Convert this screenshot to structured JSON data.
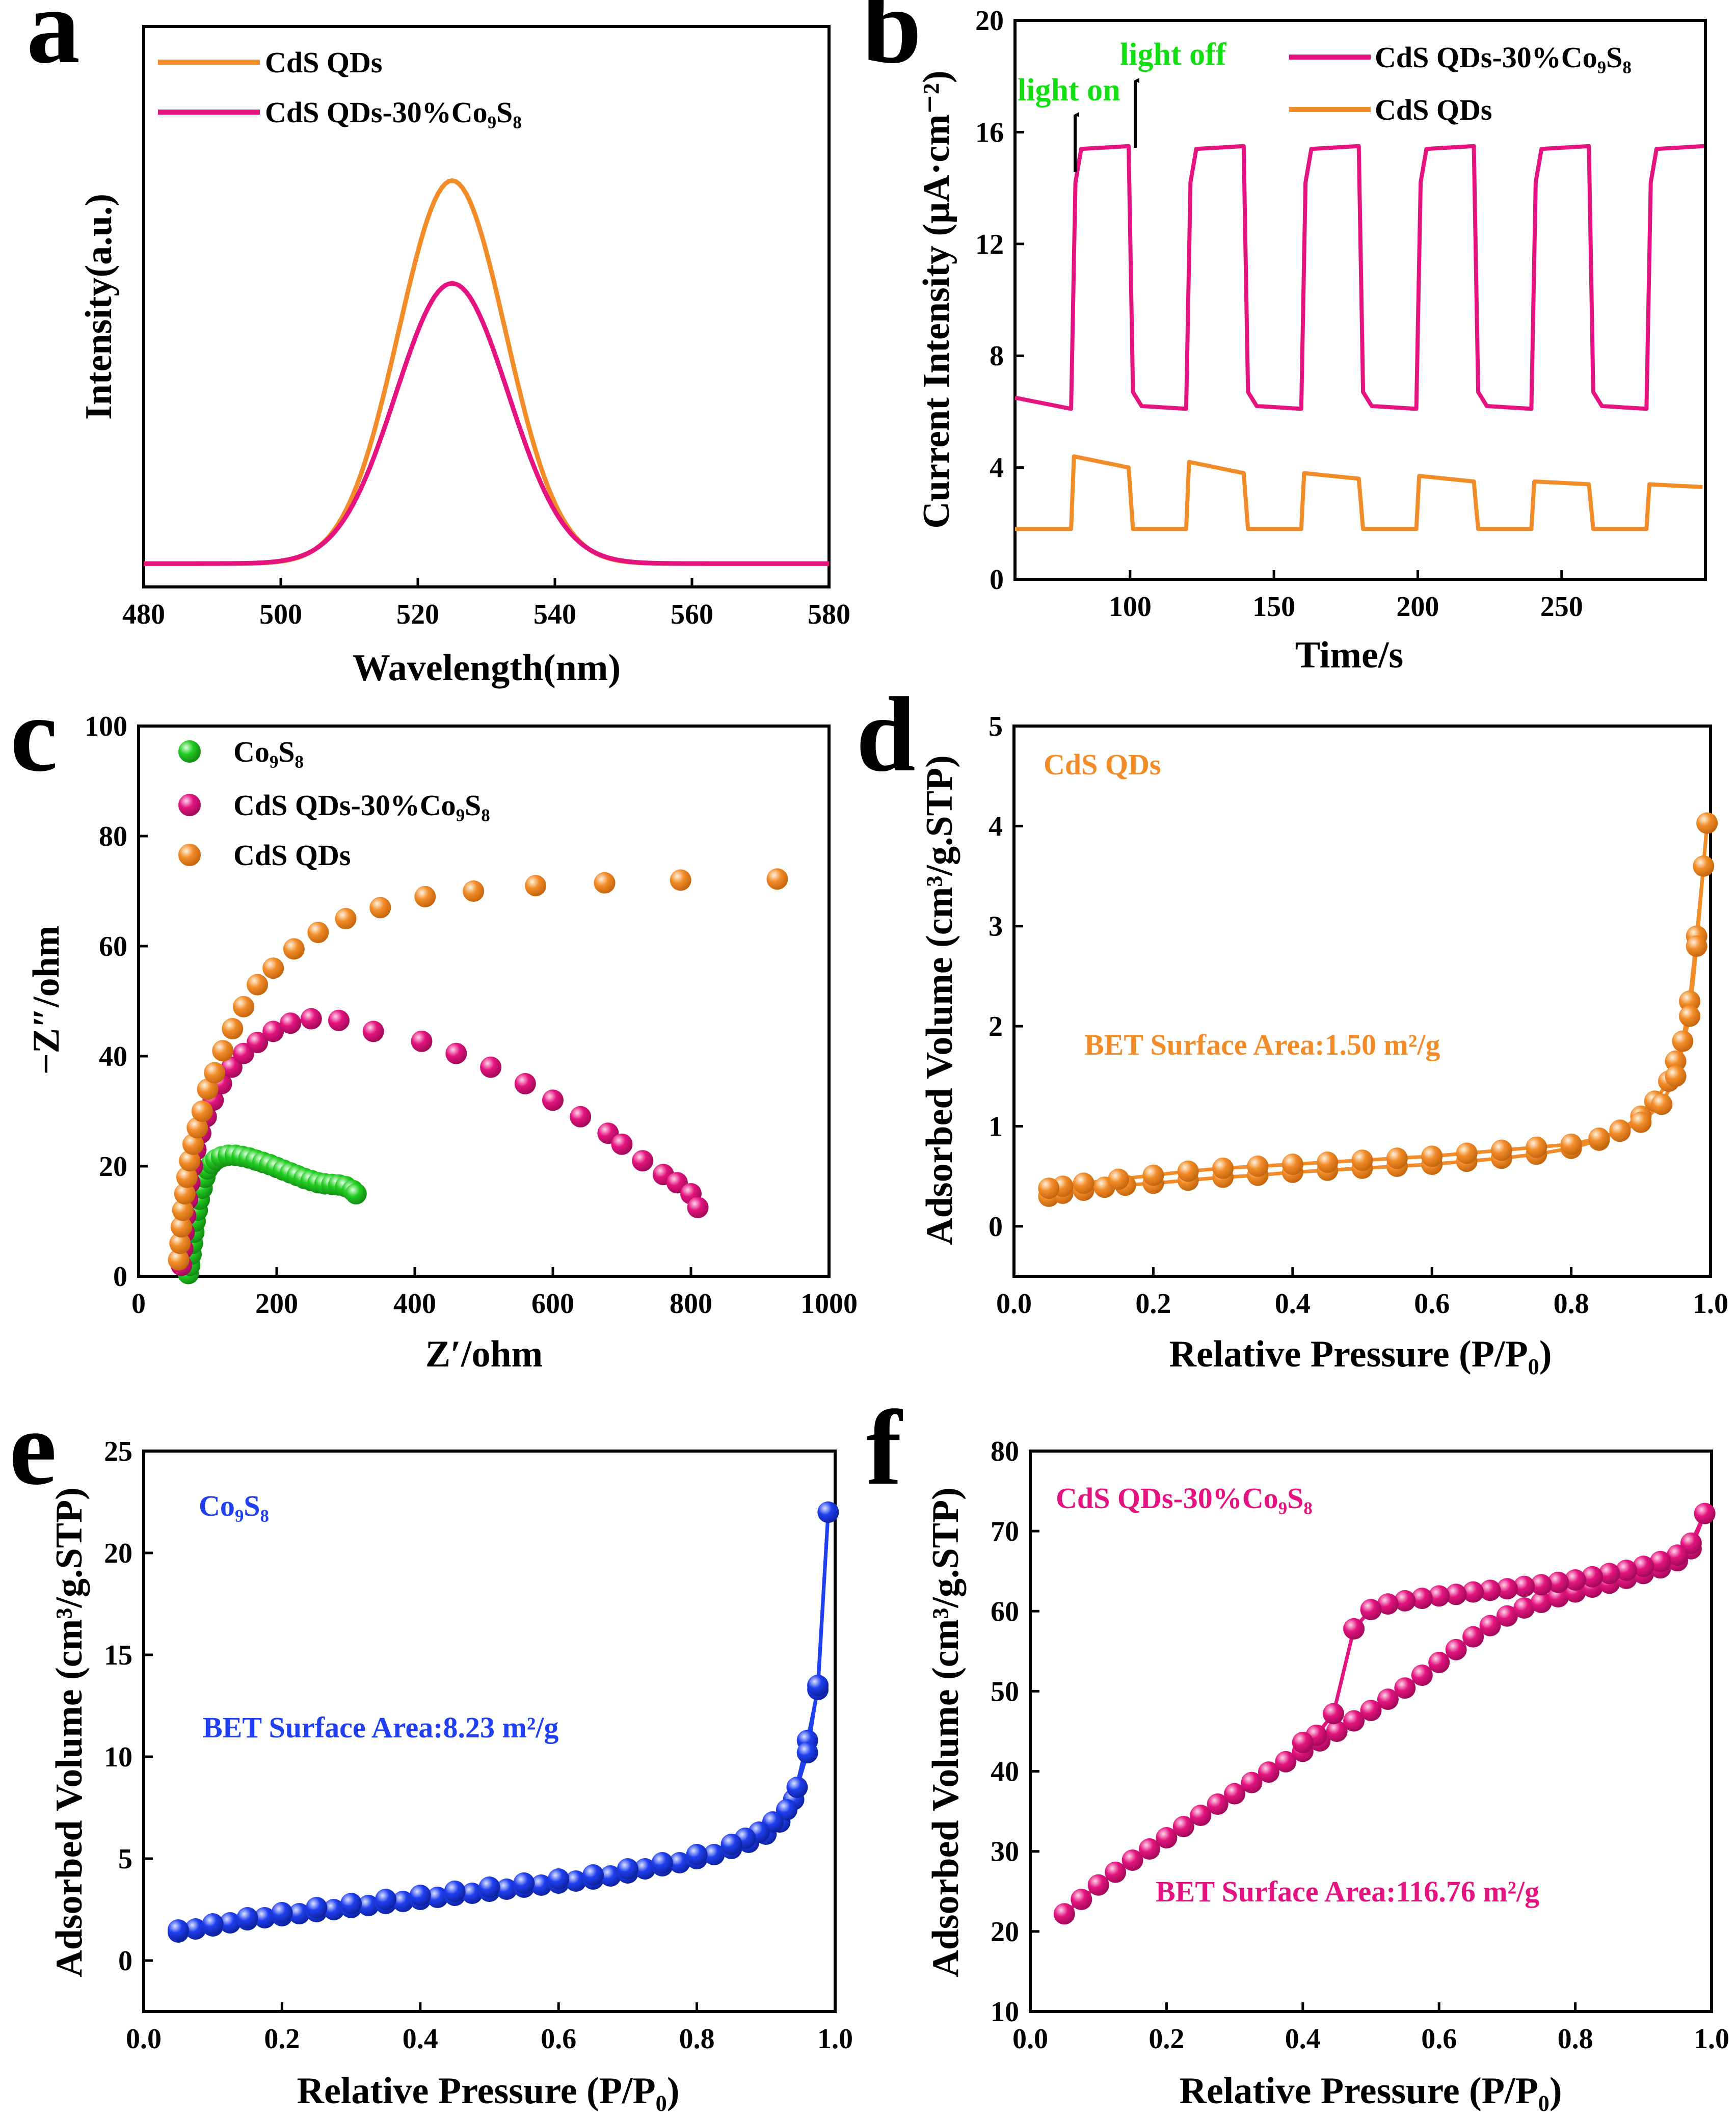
{
  "colors": {
    "cds_orange": "#f28c28",
    "composite_pink": "#e4137f",
    "co9s8_green": "#22cc22",
    "co9s8_blue": "#1f3ff0",
    "annot_green": "#13dd13",
    "arrow_black": "#000000"
  },
  "chart_data": [
    {
      "id": "a",
      "type": "line",
      "panel_letter": "a",
      "xlabel": "Wavelength(nm)",
      "ylabel": "Intensity(a.u.)",
      "xlim": [
        480,
        580
      ],
      "ylim": [
        0,
        1.2
      ],
      "xticks": [
        "480",
        "500",
        "520",
        "540",
        "560",
        "580"
      ],
      "yticks": [],
      "legend": [
        "CdS QDs",
        "CdS QDs-30%Co₉S₈"
      ],
      "series": [
        {
          "name": "CdS QDs",
          "color_key": "cds_orange",
          "peak_x": 525,
          "peak_y": 0.82,
          "sigma": 7.8,
          "baseline": 0.05
        },
        {
          "name": "CdS QDs-30%Co₉S₈",
          "color_key": "composite_pink",
          "peak_x": 525,
          "peak_y": 0.6,
          "sigma": 8.2,
          "baseline": 0.05
        }
      ]
    },
    {
      "id": "b",
      "type": "line",
      "panel_letter": "b",
      "xlabel": "Time/s",
      "ylabel": "Current Intensity (μA·cm⁻²)",
      "xlim": [
        60,
        300
      ],
      "ylim": [
        0,
        20
      ],
      "xticks": [
        "100",
        "150",
        "200",
        "250"
      ],
      "yticks": [
        "0",
        "4",
        "8",
        "12",
        "16",
        "20"
      ],
      "legend": [
        "CdS QDs-30%Co₉S₈",
        "CdS QDs"
      ],
      "annotations": {
        "light_on": "light on",
        "light_off": "light off"
      },
      "on_intervals": [
        [
          80,
          100
        ],
        [
          120,
          140
        ],
        [
          160,
          180
        ],
        [
          200,
          220
        ],
        [
          240,
          260
        ],
        [
          280,
          300
        ]
      ],
      "series": [
        {
          "name": "CdS QDs-30%Co₉S₈",
          "color_key": "composite_pink",
          "on_value": 15.4,
          "off_value": 6.1
        },
        {
          "name": "CdS QDs",
          "color_key": "cds_orange",
          "on_start": [
            4.4,
            4.2,
            3.8,
            3.7,
            3.5,
            3.4
          ],
          "on_end": [
            4.0,
            3.8,
            3.6,
            3.5,
            3.4,
            3.3
          ],
          "off_value": 1.8
        }
      ]
    },
    {
      "id": "c",
      "type": "scatter",
      "panel_letter": "c",
      "xlabel": "Z′/ohm",
      "ylabel": "−Z″/ohm",
      "xlim": [
        0,
        1000
      ],
      "ylim": [
        0,
        100
      ],
      "xticks": [
        "0",
        "200",
        "400",
        "600",
        "800",
        "1000"
      ],
      "yticks": [
        "0",
        "20",
        "40",
        "60",
        "80",
        "100"
      ],
      "legend": [
        "Co₉S₈",
        "CdS QDs-30%Co₉S₈",
        "CdS QDs"
      ],
      "series": [
        {
          "name": "Co₉S₈",
          "color_key": "co9s8_green",
          "x": [
            72,
            74,
            76,
            78,
            80,
            82,
            85,
            88,
            92,
            96,
            100,
            106,
            112,
            120,
            130,
            140,
            150,
            160,
            170,
            180,
            190,
            200,
            210,
            220,
            230,
            240,
            250,
            260,
            270,
            280,
            290,
            300,
            310,
            315
          ],
          "y": [
            0.5,
            2,
            4,
            6,
            8,
            10,
            12,
            14,
            16,
            18,
            19.5,
            20.5,
            21.2,
            21.7,
            22,
            22,
            21.8,
            21.5,
            21.1,
            20.7,
            20.3,
            19.8,
            19.3,
            18.8,
            18.3,
            17.8,
            17.4,
            17,
            16.8,
            16.7,
            16.6,
            16.3,
            15.6,
            15
          ]
        },
        {
          "name": "CdS QDs-30%Co₉S₈",
          "color_key": "composite_pink",
          "x": [
            62,
            64,
            66,
            68,
            71,
            74,
            78,
            83,
            90,
            98,
            108,
            120,
            135,
            152,
            172,
            195,
            220,
            250,
            290,
            340,
            410,
            460,
            510,
            560,
            600,
            640,
            680,
            700,
            730,
            760,
            780,
            800,
            810
          ],
          "y": [
            2,
            5,
            8,
            11,
            14,
            17,
            20,
            23,
            26,
            29,
            32,
            35,
            38,
            40.5,
            42.5,
            44.5,
            46,
            46.8,
            46.5,
            44.5,
            42.7,
            40.5,
            38,
            35,
            32,
            29,
            26,
            24,
            21,
            18.5,
            17,
            15,
            12.5
          ]
        },
        {
          "name": "CdS QDs",
          "color_key": "cds_orange",
          "x": [
            58,
            60,
            62,
            64,
            67,
            70,
            74,
            79,
            85,
            92,
            100,
            110,
            122,
            136,
            152,
            172,
            195,
            225,
            260,
            300,
            350,
            415,
            485,
            575,
            675,
            785,
            925
          ],
          "y": [
            3,
            6,
            9,
            12,
            15,
            18,
            21,
            24,
            27,
            30,
            34,
            37,
            41,
            45,
            49,
            53,
            56,
            59.5,
            62.5,
            65,
            67,
            69,
            70,
            71,
            71.5,
            72,
            72.2
          ]
        }
      ]
    },
    {
      "id": "d",
      "type": "scatter",
      "panel_letter": "d",
      "xlabel": "Relative Pressure (P/P₀)",
      "ylabel": "Adsorbed Volume (cm³/g.STP)",
      "xlim": [
        0,
        1
      ],
      "ylim": [
        -0.5,
        5
      ],
      "xticks": [
        "0.0",
        "0.2",
        "0.4",
        "0.6",
        "0.8",
        "1.0"
      ],
      "yticks": [
        "0",
        "1",
        "2",
        "3",
        "4",
        "5"
      ],
      "series_label": "CdS QDs",
      "bet_text": "BET Surface Area:1.50 m²/g",
      "series": [
        {
          "name": "CdS QDs",
          "color_key": "cds_orange",
          "adsorption": {
            "x": [
              0.05,
              0.07,
              0.1,
              0.13,
              0.16,
              0.2,
              0.25,
              0.3,
              0.35,
              0.4,
              0.45,
              0.5,
              0.55,
              0.6,
              0.65,
              0.7,
              0.75,
              0.8,
              0.84,
              0.87,
              0.9,
              0.92,
              0.94,
              0.95,
              0.96,
              0.97,
              0.98,
              0.99,
              0.995
            ],
            "y": [
              0.3,
              0.33,
              0.36,
              0.39,
              0.41,
              0.43,
              0.46,
              0.49,
              0.51,
              0.54,
              0.56,
              0.58,
              0.6,
              0.62,
              0.65,
              0.68,
              0.72,
              0.78,
              0.86,
              0.96,
              1.1,
              1.25,
              1.45,
              1.65,
              1.85,
              2.25,
              2.9,
              3.6,
              4.03
            ]
          },
          "desorption": {
            "x": [
              0.995,
              0.98,
              0.97,
              0.95,
              0.93,
              0.9,
              0.87,
              0.84,
              0.8,
              0.75,
              0.7,
              0.65,
              0.6,
              0.55,
              0.5,
              0.45,
              0.4,
              0.35,
              0.3,
              0.25,
              0.2,
              0.15,
              0.1,
              0.07,
              0.05
            ],
            "y": [
              4.03,
              2.8,
              2.1,
              1.5,
              1.22,
              1.04,
              0.95,
              0.88,
              0.82,
              0.79,
              0.76,
              0.73,
              0.7,
              0.68,
              0.66,
              0.64,
              0.62,
              0.6,
              0.58,
              0.55,
              0.51,
              0.47,
              0.43,
              0.4,
              0.38
            ]
          }
        }
      ]
    },
    {
      "id": "e",
      "type": "scatter",
      "panel_letter": "e",
      "xlabel": "Relative Pressure (P/P₀)",
      "ylabel": "Adsorbed Volume (cm³/g.STP)",
      "xlim": [
        0,
        1
      ],
      "ylim": [
        -2.5,
        25
      ],
      "xticks": [
        "0.0",
        "0.2",
        "0.4",
        "0.6",
        "0.8",
        "1.0"
      ],
      "yticks": [
        "0",
        "5",
        "10",
        "15",
        "20",
        "25"
      ],
      "series_label": "Co₉S₈",
      "bet_text": "BET Surface Area:8.23 m²/g",
      "series": [
        {
          "name": "Co₉S₈",
          "color_key": "co9s8_blue",
          "adsorption": {
            "x": [
              0.05,
              0.075,
              0.1,
              0.125,
              0.15,
              0.175,
              0.2,
              0.225,
              0.25,
              0.275,
              0.3,
              0.325,
              0.35,
              0.375,
              0.4,
              0.425,
              0.45,
              0.475,
              0.5,
              0.525,
              0.55,
              0.575,
              0.6,
              0.625,
              0.65,
              0.675,
              0.7,
              0.725,
              0.75,
              0.775,
              0.8,
              0.825,
              0.85,
              0.875,
              0.9,
              0.92,
              0.94,
              0.96,
              0.975,
              0.99
            ],
            "y": [
              1.4,
              1.55,
              1.7,
              1.85,
              2.0,
              2.1,
              2.2,
              2.3,
              2.4,
              2.5,
              2.6,
              2.7,
              2.8,
              2.9,
              3.0,
              3.1,
              3.2,
              3.3,
              3.4,
              3.5,
              3.6,
              3.7,
              3.8,
              3.9,
              4.0,
              4.15,
              4.3,
              4.5,
              4.65,
              4.8,
              5.0,
              5.2,
              5.5,
              5.8,
              6.2,
              6.8,
              7.9,
              10.8,
              13.3,
              22.0
            ]
          },
          "desorption": {
            "x": [
              0.99,
              0.975,
              0.96,
              0.945,
              0.93,
              0.91,
              0.89,
              0.87,
              0.85,
              0.8,
              0.75,
              0.7,
              0.65,
              0.6,
              0.55,
              0.5,
              0.45,
              0.4,
              0.35,
              0.3,
              0.25,
              0.2,
              0.15,
              0.1,
              0.05
            ],
            "y": [
              22.0,
              13.5,
              10.2,
              8.5,
              7.4,
              6.8,
              6.3,
              6.0,
              5.7,
              5.2,
              4.8,
              4.5,
              4.2,
              4.0,
              3.8,
              3.6,
              3.4,
              3.2,
              3.0,
              2.8,
              2.6,
              2.35,
              2.1,
              1.8,
              1.5
            ]
          }
        }
      ]
    },
    {
      "id": "f",
      "type": "scatter",
      "panel_letter": "f",
      "xlabel": "Relative Pressure (P/P₀)",
      "ylabel": "Adsorbed Volume (cm³/g.STP)",
      "xlim": [
        0,
        1
      ],
      "ylim": [
        10,
        80
      ],
      "xticks": [
        "0.0",
        "0.2",
        "0.4",
        "0.6",
        "0.8",
        "1.0"
      ],
      "yticks": [
        "10",
        "20",
        "30",
        "40",
        "50",
        "60",
        "70",
        "80"
      ],
      "series_label": "CdS QDs-30%Co₉S₈",
      "bet_text": "BET Surface Area:116.76 m²/g",
      "series": [
        {
          "name": "CdS QDs-30%Co₉S₈",
          "color_key": "composite_pink",
          "adsorption": {
            "x": [
              0.05,
              0.075,
              0.1,
              0.125,
              0.15,
              0.175,
              0.2,
              0.225,
              0.25,
              0.275,
              0.3,
              0.325,
              0.35,
              0.375,
              0.4,
              0.425,
              0.45,
              0.475,
              0.5,
              0.525,
              0.55,
              0.575,
              0.6,
              0.625,
              0.65,
              0.675,
              0.7,
              0.725,
              0.75,
              0.775,
              0.8,
              0.825,
              0.85,
              0.875,
              0.9,
              0.925,
              0.95,
              0.97,
              0.99
            ],
            "y": [
              22.2,
              24,
              25.8,
              27.4,
              28.9,
              30.3,
              31.7,
              33.1,
              34.5,
              35.9,
              37.2,
              38.6,
              39.9,
              41.2,
              42.5,
              43.8,
              45,
              46.3,
              47.6,
              49,
              50.4,
              52,
              53.6,
              55.2,
              56.8,
              58.2,
              59.4,
              60.4,
              61.1,
              61.8,
              62.4,
              63,
              63.5,
              64.1,
              64.7,
              65.4,
              66.3,
              67.8,
              72.2
            ]
          },
          "desorption": {
            "x": [
              0.99,
              0.97,
              0.95,
              0.925,
              0.9,
              0.875,
              0.85,
              0.825,
              0.8,
              0.775,
              0.75,
              0.725,
              0.7,
              0.675,
              0.65,
              0.625,
              0.6,
              0.575,
              0.55,
              0.525,
              0.5,
              0.475,
              0.445,
              0.42,
              0.4
            ],
            "y": [
              72.2,
              68.5,
              67,
              66.2,
              65.6,
              65.1,
              64.7,
              64.3,
              63.9,
              63.6,
              63.3,
              63.1,
              62.8,
              62.6,
              62.4,
              62.1,
              61.9,
              61.6,
              61.3,
              60.9,
              60.2,
              57.8,
              47.2,
              44.5,
              43.6
            ]
          }
        }
      ]
    }
  ]
}
